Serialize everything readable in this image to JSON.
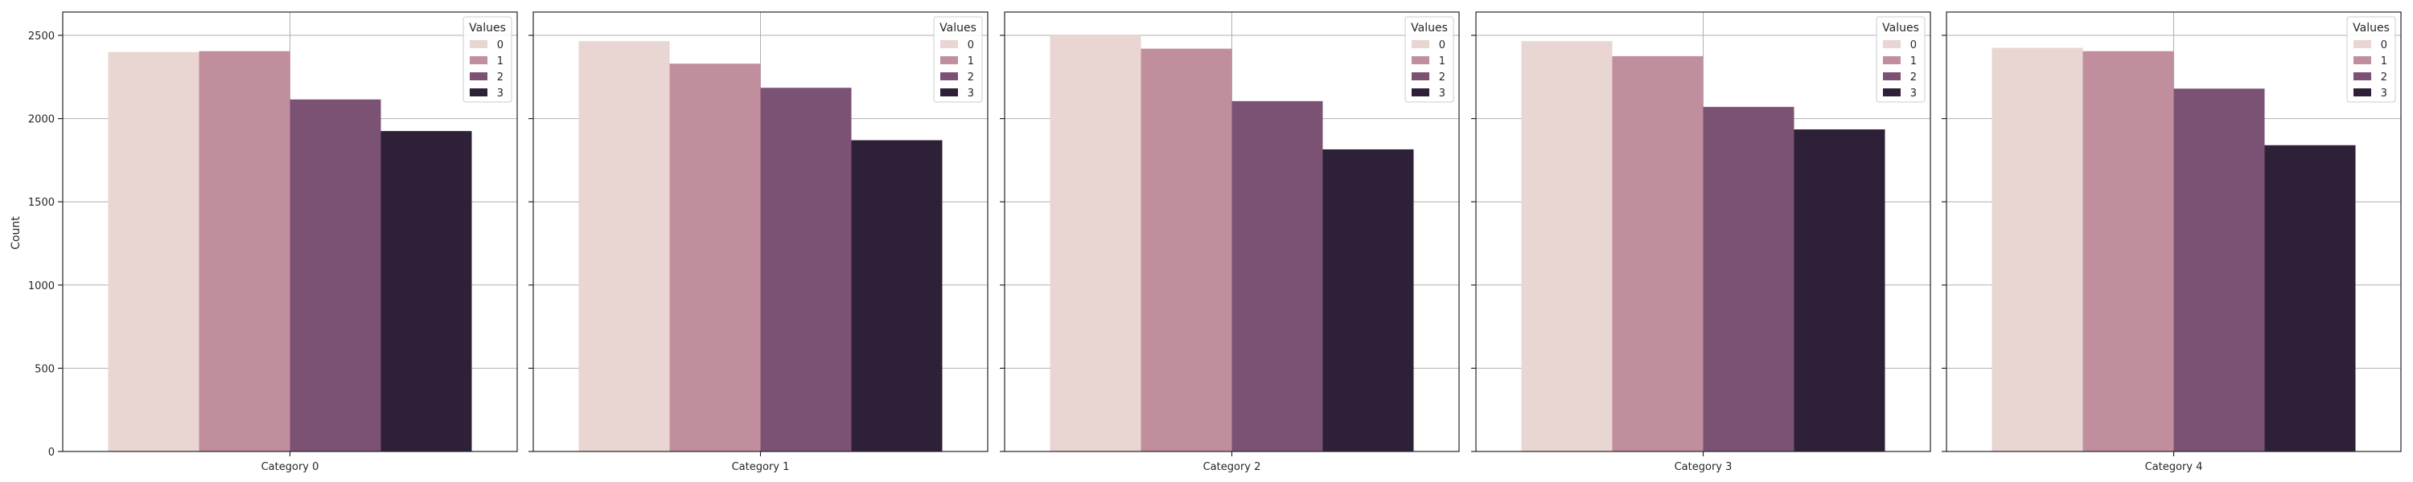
{
  "chart_data": {
    "type": "bar",
    "ylabel": "Count",
    "ylim": [
      0,
      2640
    ],
    "yticks": [
      0,
      500,
      1000,
      1500,
      2000,
      2500
    ],
    "grid": true,
    "legend": {
      "title": "Values",
      "placement": "top-right",
      "entries": [
        "0",
        "1",
        "2",
        "3"
      ]
    },
    "colors": [
      "#e9d5d1",
      "#c18e9d",
      "#7b5274",
      "#2d2037"
    ],
    "panels": [
      {
        "category": "Category 0",
        "series": [
          {
            "name": "0",
            "value": 2400
          },
          {
            "name": "1",
            "value": 2405
          },
          {
            "name": "2",
            "value": 2115
          },
          {
            "name": "3",
            "value": 1925
          }
        ]
      },
      {
        "category": "Category 1",
        "series": [
          {
            "name": "0",
            "value": 2465
          },
          {
            "name": "1",
            "value": 2330
          },
          {
            "name": "2",
            "value": 2185
          },
          {
            "name": "3",
            "value": 1870
          }
        ]
      },
      {
        "category": "Category 2",
        "series": [
          {
            "name": "0",
            "value": 2505
          },
          {
            "name": "1",
            "value": 2420
          },
          {
            "name": "2",
            "value": 2105
          },
          {
            "name": "3",
            "value": 1815
          }
        ]
      },
      {
        "category": "Category 3",
        "series": [
          {
            "name": "0",
            "value": 2465
          },
          {
            "name": "1",
            "value": 2375
          },
          {
            "name": "2",
            "value": 2070
          },
          {
            "name": "3",
            "value": 1935
          }
        ]
      },
      {
        "category": "Category 4",
        "series": [
          {
            "name": "0",
            "value": 2425
          },
          {
            "name": "1",
            "value": 2405
          },
          {
            "name": "2",
            "value": 2180
          },
          {
            "name": "3",
            "value": 1840
          }
        ]
      }
    ]
  }
}
